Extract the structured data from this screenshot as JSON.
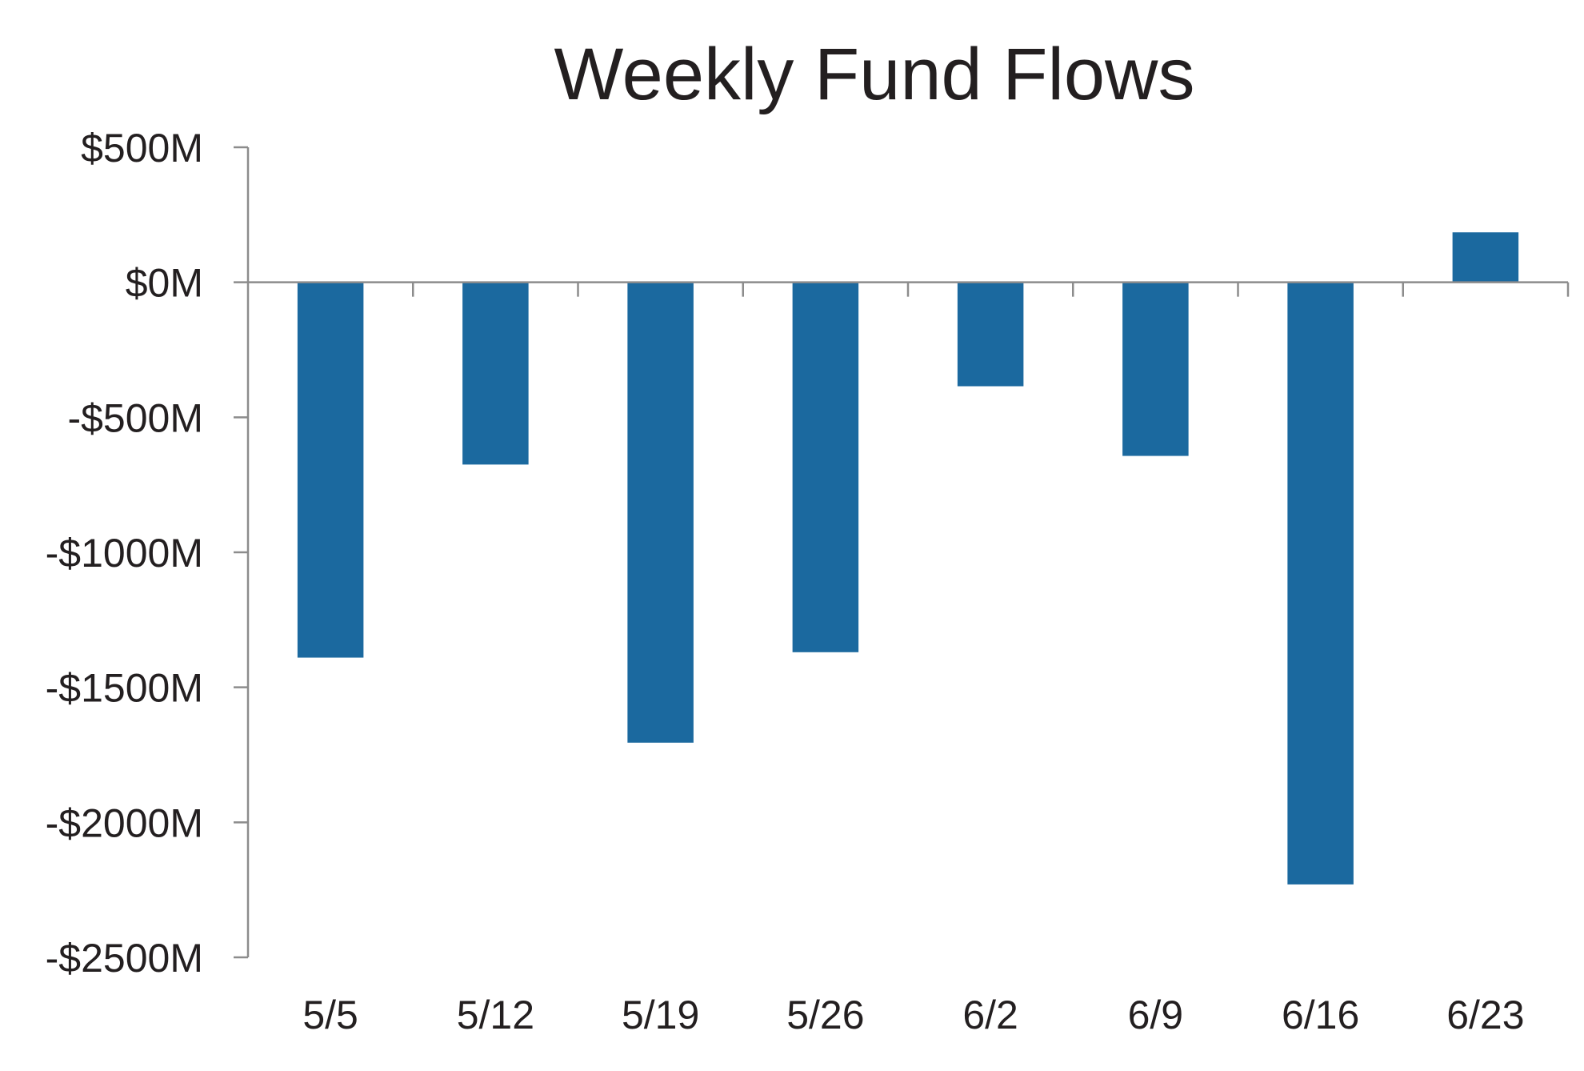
{
  "chart_data": {
    "type": "bar",
    "title": "Weekly Fund Flows",
    "xlabel": "",
    "ylabel": "",
    "categories": [
      "5/5",
      "5/12",
      "5/19",
      "5/26",
      "6/2",
      "6/9",
      "6/16",
      "6/23"
    ],
    "values": [
      -1390,
      -675,
      -1705,
      -1370,
      -385,
      -643,
      -2230,
      185
    ],
    "ylim": [
      -2500,
      500
    ],
    "yticks": [
      500,
      0,
      -500,
      -1000,
      -1500,
      -2000,
      -2500
    ],
    "ytick_labels": [
      "$500M",
      "$0M",
      "-$500M",
      "-$1000M",
      "-$1500M",
      "-$2000M",
      "-$2500M"
    ],
    "grid": false,
    "legend": "none",
    "bar_color": "#1b699f",
    "axis_color": "#8c8c8c",
    "text_color": "#231f20"
  }
}
